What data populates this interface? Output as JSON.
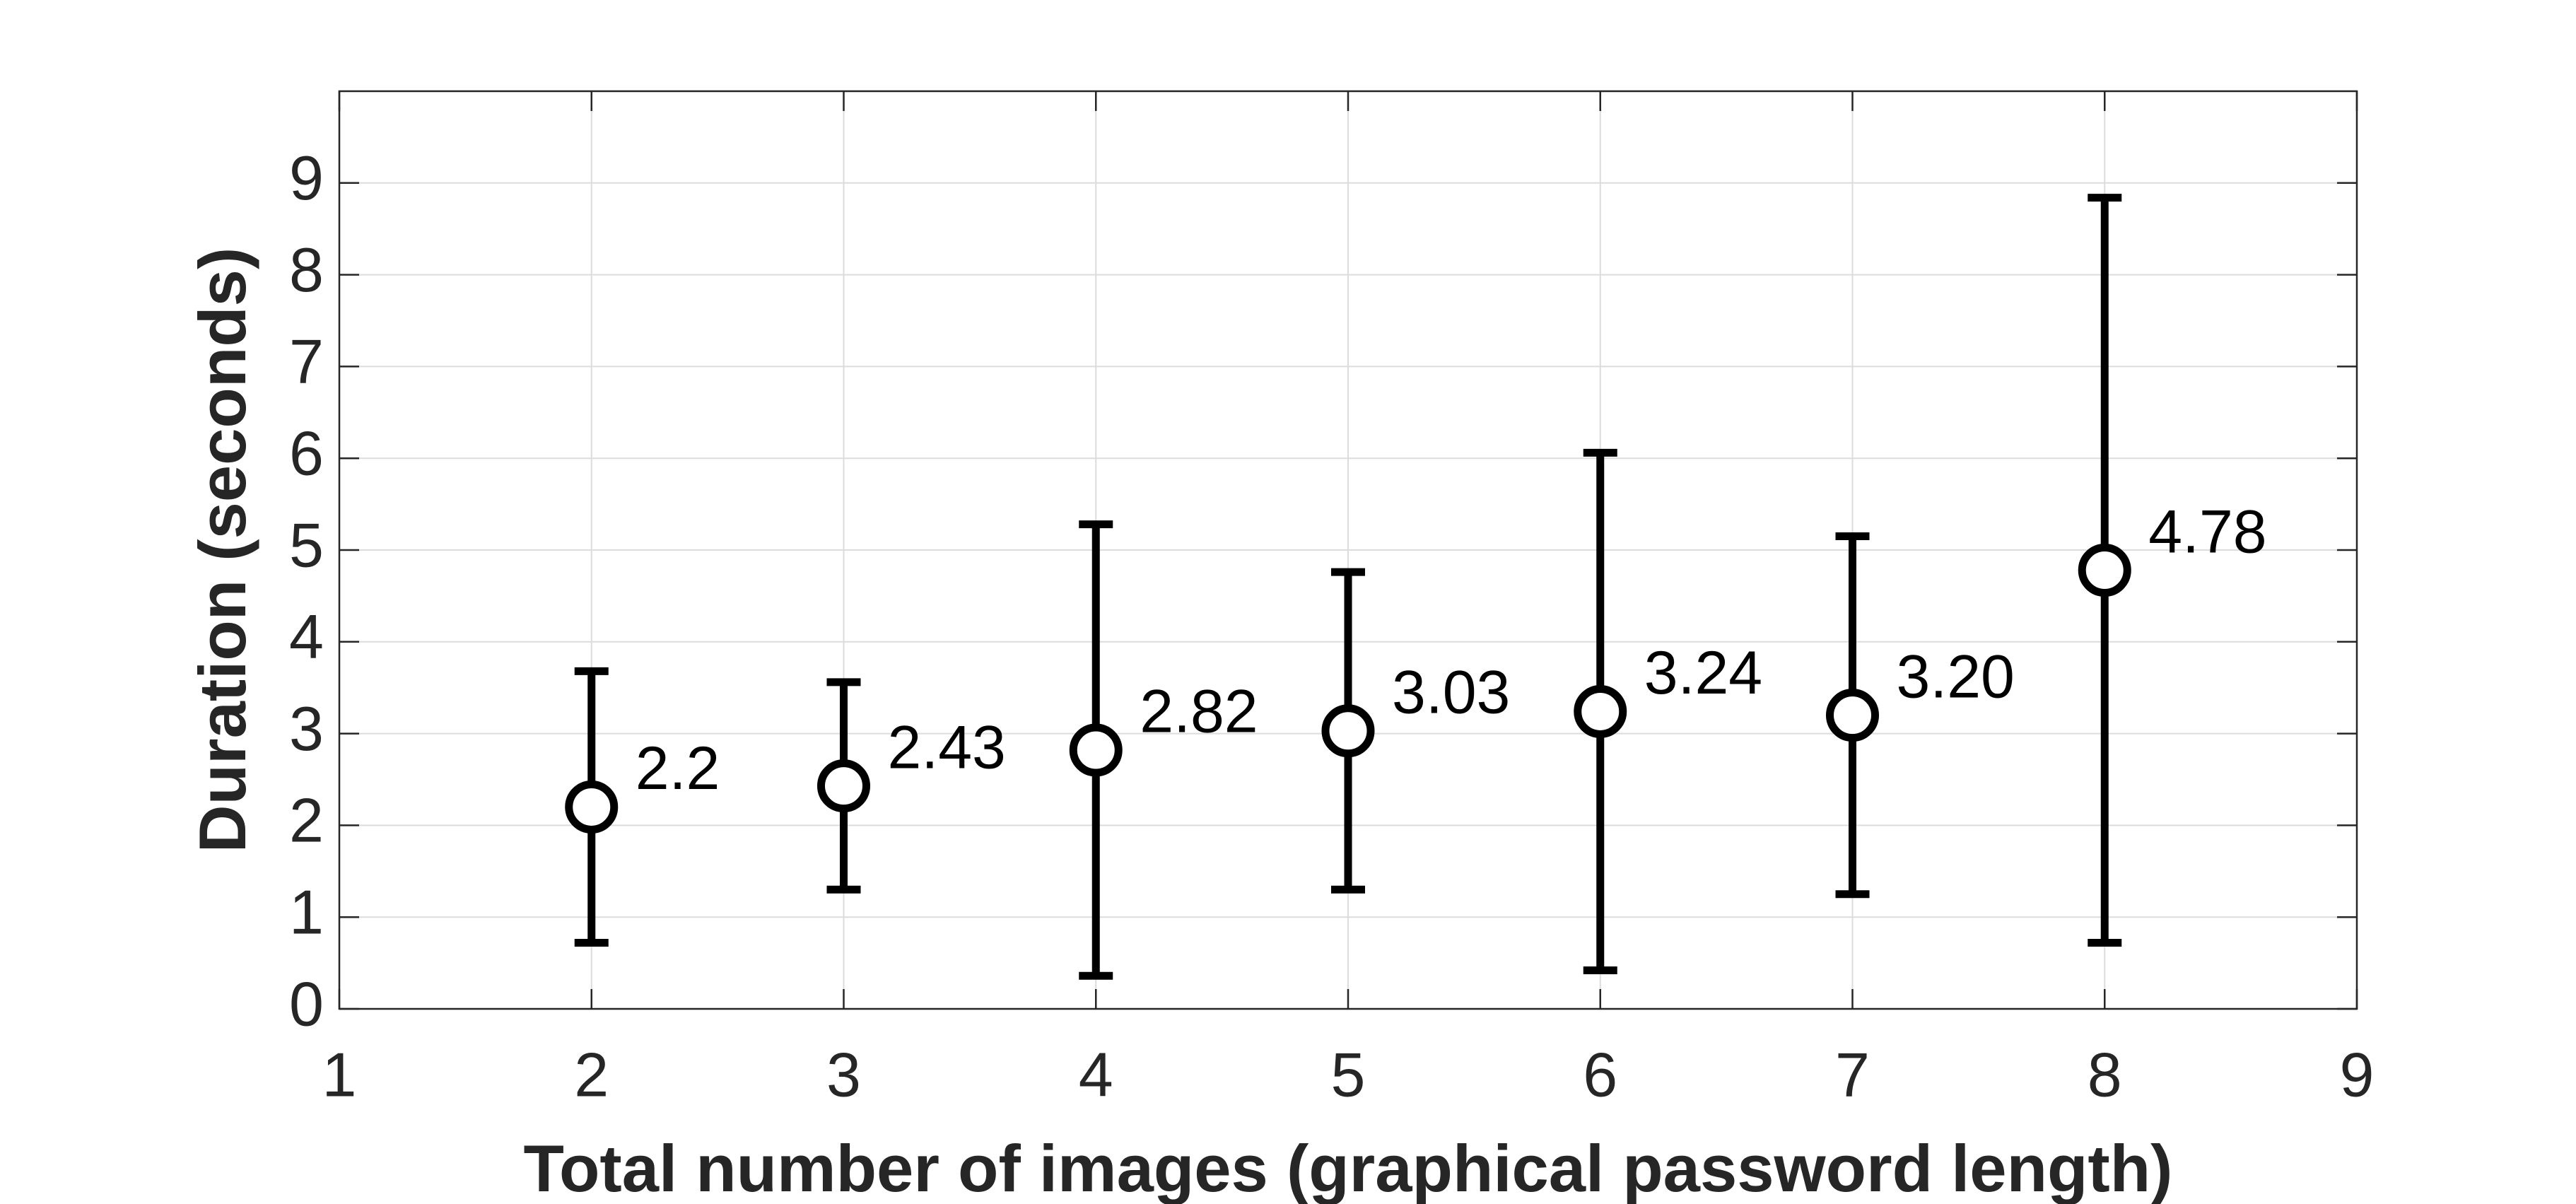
{
  "chart_data": {
    "type": "errorbar",
    "xlabel": "Total number of images (graphical password length)",
    "ylabel": "Duration (seconds)",
    "x": [
      2,
      3,
      4,
      5,
      6,
      7,
      8
    ],
    "values": [
      2.2,
      2.43,
      2.82,
      3.03,
      3.24,
      3.2,
      4.78
    ],
    "value_labels": [
      "2.2",
      "2.43",
      "2.82",
      "3.03",
      "3.24",
      "3.20",
      "4.78"
    ],
    "errors": [
      1.48,
      1.13,
      2.46,
      1.73,
      2.82,
      1.95,
      4.06
    ],
    "color": "#000000",
    "xlim": [
      1,
      9
    ],
    "xticks": [
      1,
      2,
      3,
      4,
      5,
      6,
      7,
      8,
      9
    ],
    "ylim": [
      0,
      10
    ],
    "yticks": [
      0,
      1,
      2,
      3,
      4,
      5,
      6,
      7,
      8,
      9
    ],
    "grid": true
  }
}
